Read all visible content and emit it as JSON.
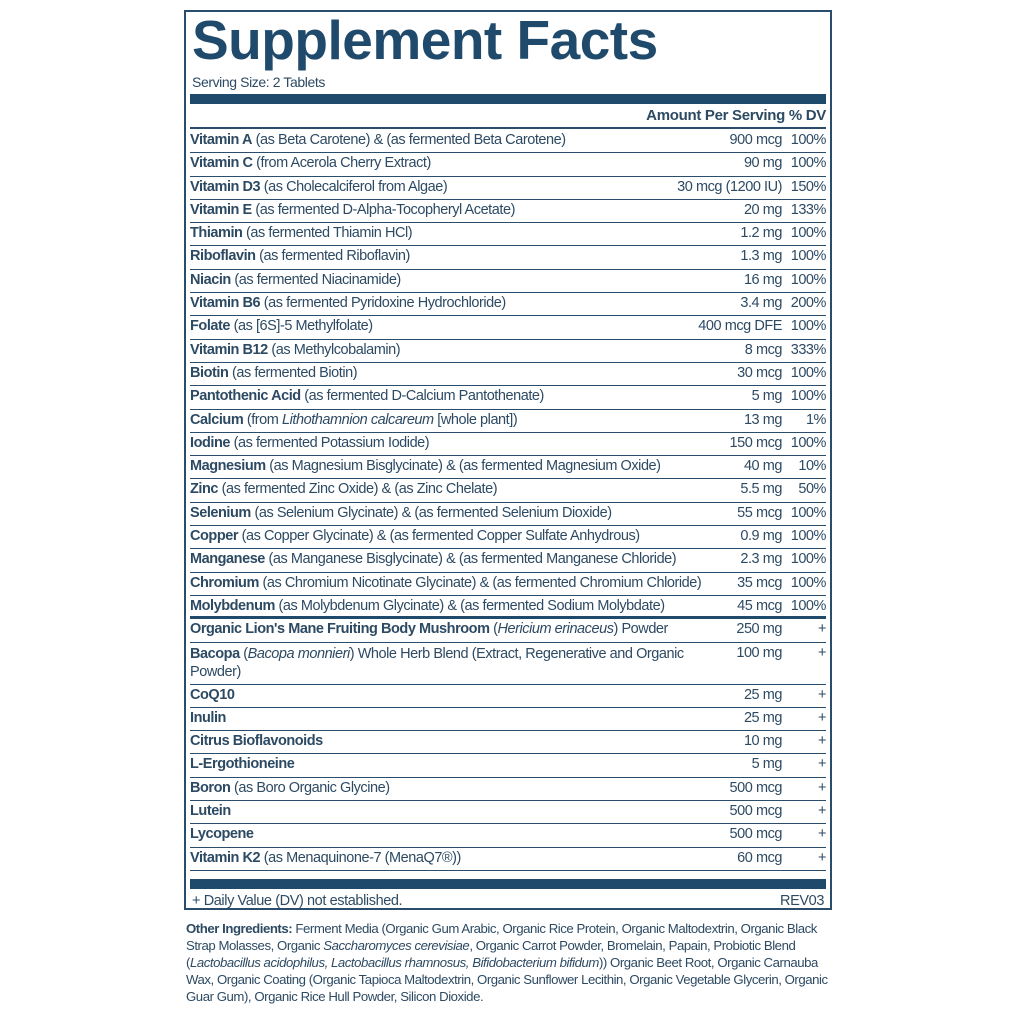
{
  "title": "Supplement Facts",
  "serving_size": "Serving Size: 2 Tablets",
  "header": {
    "amount": "Amount Per Serving",
    "dv": "% DV"
  },
  "rows": [
    {
      "name": "Vitamin A",
      "desc": " (as Beta Carotene) & (as fermented Beta Carotene)",
      "italic": "",
      "after": "",
      "amount": "900 mcg",
      "dv": "100%"
    },
    {
      "name": "Vitamin C",
      "desc": " (from Acerola Cherry Extract)",
      "italic": "",
      "after": "",
      "amount": "90 mg",
      "dv": "100%"
    },
    {
      "name": "Vitamin D3",
      "desc": " (as Cholecalciferol from Algae)",
      "italic": "",
      "after": "",
      "amount": "30 mcg (1200 IU)",
      "dv": "150%"
    },
    {
      "name": "Vitamin E",
      "desc": " (as fermented D-Alpha-Tocopheryl Acetate)",
      "italic": "",
      "after": "",
      "amount": "20 mg",
      "dv": "133%"
    },
    {
      "name": "Thiamin",
      "desc": " (as fermented Thiamin HCl)",
      "italic": "",
      "after": "",
      "amount": "1.2 mg",
      "dv": "100%"
    },
    {
      "name": "Riboflavin",
      "desc": " (as fermented Riboflavin)",
      "italic": "",
      "after": "",
      "amount": "1.3 mg",
      "dv": "100%"
    },
    {
      "name": "Niacin",
      "desc": " (as fermented Niacinamide)",
      "italic": "",
      "after": "",
      "amount": "16 mg",
      "dv": "100%"
    },
    {
      "name": "Vitamin B6",
      "desc": " (as fermented Pyridoxine Hydrochloride)",
      "italic": "",
      "after": "",
      "amount": "3.4 mg",
      "dv": "200%"
    },
    {
      "name": "Folate",
      "desc": " (as [6S]-5 Methylfolate)",
      "italic": "",
      "after": "",
      "amount": "400 mcg DFE",
      "dv": "100%"
    },
    {
      "name": "Vitamin B12",
      "desc": " (as Methylcobalamin)",
      "italic": "",
      "after": "",
      "amount": "8 mcg",
      "dv": "333%"
    },
    {
      "name": "Biotin",
      "desc": " (as fermented Biotin)",
      "italic": "",
      "after": "",
      "amount": "30 mcg",
      "dv": "100%"
    },
    {
      "name": "Pantothenic Acid",
      "desc": " (as fermented D-Calcium Pantothenate)",
      "italic": "",
      "after": "",
      "amount": "5 mg",
      "dv": "100%"
    },
    {
      "name": "Calcium",
      "desc": " (from ",
      "italic": "Lithothamnion calcareum",
      "after": " [whole plant])",
      "amount": "13 mg",
      "dv": "1%"
    },
    {
      "name": "Iodine",
      "desc": " (as fermented Potassium Iodide)",
      "italic": "",
      "after": "",
      "amount": "150 mcg",
      "dv": "100%"
    },
    {
      "name": "Magnesium",
      "desc": " (as Magnesium Bisglycinate) & (as fermented Magnesium Oxide)",
      "italic": "",
      "after": "",
      "amount": "40 mg",
      "dv": "10%"
    },
    {
      "name": "Zinc",
      "desc": " (as fermented Zinc Oxide) & (as Zinc Chelate)",
      "italic": "",
      "after": "",
      "amount": "5.5 mg",
      "dv": "50%"
    },
    {
      "name": "Selenium",
      "desc": " (as Selenium Glycinate) & (as fermented Selenium Dioxide)",
      "italic": "",
      "after": "",
      "amount": "55 mcg",
      "dv": "100%"
    },
    {
      "name": "Copper",
      "desc": " (as Copper Glycinate) & (as fermented Copper Sulfate Anhydrous)",
      "italic": "",
      "after": "",
      "amount": "0.9 mg",
      "dv": "100%"
    },
    {
      "name": "Manganese",
      "desc": " (as Manganese Bisglycinate) & (as fermented Manganese Chloride)",
      "italic": "",
      "after": "",
      "amount": "2.3 mg",
      "dv": "100%"
    },
    {
      "name": "Chromium",
      "desc": " (as Chromium Nicotinate Glycinate) & (as fermented Chromium Chloride)",
      "italic": "",
      "after": "",
      "amount": "35 mcg",
      "dv": "100%"
    },
    {
      "name": "Molybdenum",
      "desc": " (as Molybdenum Glycinate) & (as fermented Sodium Molybdate)",
      "italic": "",
      "after": "",
      "amount": "45 mcg",
      "dv": "100%"
    },
    {
      "name": "Organic Lion's Mane Fruiting Body Mushroom",
      "desc": " (",
      "italic": "Hericium erinaceus",
      "after": ") Powder",
      "amount": "250 mg",
      "dv": "+"
    },
    {
      "name": "Bacopa",
      "desc": " (",
      "italic": "Bacopa monnieri",
      "after": ") Whole Herb Blend (Extract, Regenerative and Organic Powder)",
      "amount": "100 mg",
      "dv": "+"
    },
    {
      "name": "CoQ10",
      "desc": "",
      "italic": "",
      "after": "",
      "amount": "25 mg",
      "dv": "+"
    },
    {
      "name": "Inulin",
      "desc": "",
      "italic": "",
      "after": "",
      "amount": "25 mg",
      "dv": "+"
    },
    {
      "name": "Citrus Bioflavonoids",
      "desc": "",
      "italic": "",
      "after": "",
      "amount": "10 mg",
      "dv": "+"
    },
    {
      "name": "L-Ergothioneine",
      "desc": "",
      "italic": "",
      "after": "",
      "amount": "5 mg",
      "dv": "+"
    },
    {
      "name": "Boron",
      "desc": " (as Boro Organic Glycine)",
      "italic": "",
      "after": "",
      "amount": "500 mcg",
      "dv": "+"
    },
    {
      "name": "Lutein",
      "desc": "",
      "italic": "",
      "after": "",
      "amount": "500 mcg",
      "dv": "+"
    },
    {
      "name": "Lycopene",
      "desc": "",
      "italic": "",
      "after": "",
      "amount": "500 mcg",
      "dv": "+"
    },
    {
      "name": "Vitamin K2",
      "desc": " (as Menaquinone-7 (MenaQ7®))",
      "italic": "",
      "after": "",
      "amount": "60 mcg",
      "dv": "+"
    }
  ],
  "footnote": "+ Daily Value (DV) not established.",
  "revision": "REV03",
  "other_ingredients": {
    "label": "Other Ingredients:",
    "segments": [
      {
        "text": " Ferment Media (Organic Gum Arabic, Organic Rice Protein, Organic Maltodextrin, Organic Black Strap Molasses, Organic ",
        "italic": false
      },
      {
        "text": "Saccharomyces cerevisiae",
        "italic": true
      },
      {
        "text": ", Organic Carrot Powder, Bromelain, Papain, Probiotic Blend (",
        "italic": false
      },
      {
        "text": "Lactobacillus acidophilus, Lactobacillus rhamnosus, Bifidobacterium bifidum",
        "italic": true
      },
      {
        "text": ")) Organic Beet Root, Organic Carnauba Wax, Organic Coating (Organic Tapioca Maltodextrin, Organic Sunflower Lecithin, Organic Vegetable Glycerin, Organic Guar Gum), Organic Rice Hull Powder, Silicon Dioxide.",
        "italic": false
      }
    ]
  },
  "colors": {
    "brand": "#1f4a6b",
    "text": "#2d4a63"
  }
}
